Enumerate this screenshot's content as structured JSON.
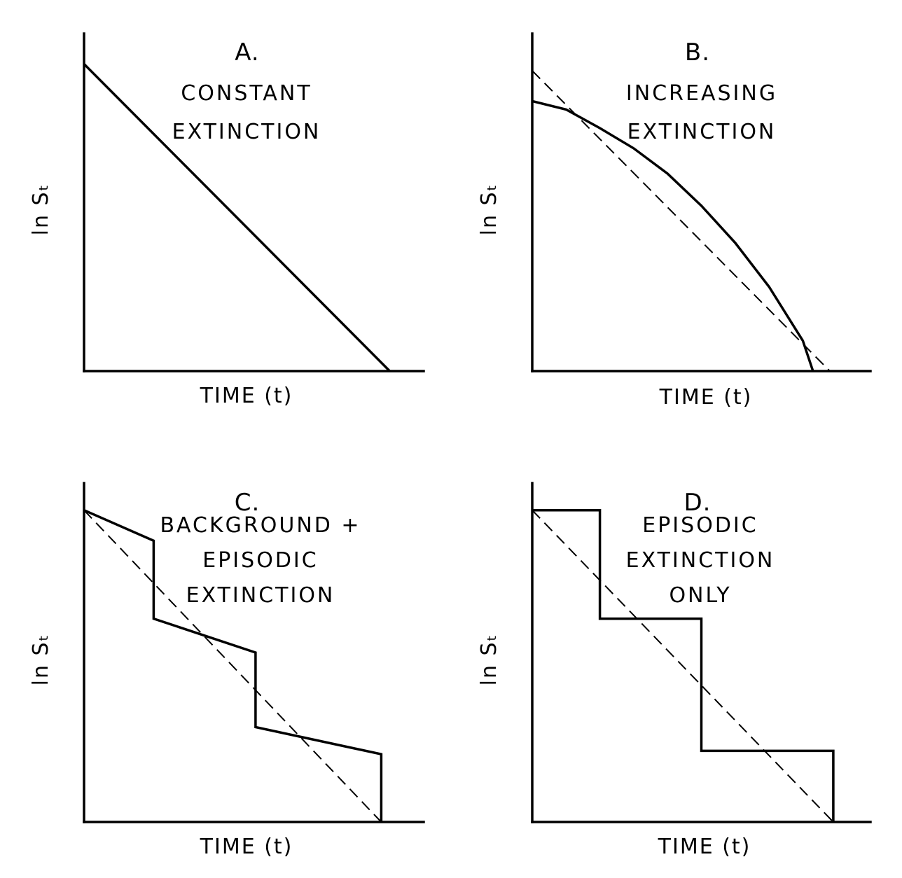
{
  "chart_data": [
    {
      "type": "line",
      "panel": "A.",
      "caption": [
        "CONSTANT",
        "EXTINCTION"
      ],
      "xlabel": "TIME (t)",
      "ylabel": "ln Sₜ",
      "xlim": [
        0,
        1
      ],
      "ylim": [
        0,
        1
      ],
      "grid": false,
      "series": [
        {
          "style": "solid",
          "x": [
            0,
            0.9
          ],
          "y": [
            0.91,
            0
          ]
        }
      ]
    },
    {
      "type": "line",
      "panel": "B.",
      "caption": [
        "INCREASING",
        "EXTINCTION"
      ],
      "xlabel": "TIME (t)",
      "ylabel": "ln Sₜ",
      "xlim": [
        0,
        1
      ],
      "ylim": [
        0,
        1
      ],
      "grid": false,
      "series": [
        {
          "style": "solid",
          "x": [
            0,
            0.1,
            0.2,
            0.3,
            0.4,
            0.5,
            0.6,
            0.7,
            0.8,
            0.83
          ],
          "y": [
            0.8,
            0.775,
            0.72,
            0.66,
            0.585,
            0.49,
            0.38,
            0.25,
            0.09,
            0
          ]
        },
        {
          "style": "dashed",
          "x": [
            0,
            0.88
          ],
          "y": [
            0.89,
            0
          ]
        }
      ]
    },
    {
      "type": "line",
      "panel": "C.",
      "caption": [
        "BACKGROUND +",
        "EPISODIC",
        "EXTINCTION"
      ],
      "xlabel": "TIME (t)",
      "ylabel": "ln Sₜ",
      "xlim": [
        0,
        1
      ],
      "ylim": [
        0,
        1
      ],
      "grid": false,
      "series": [
        {
          "style": "solid",
          "x": [
            0,
            0.205,
            0.205,
            0.505,
            0.505,
            0.875,
            0.875
          ],
          "y": [
            0.92,
            0.83,
            0.6,
            0.5,
            0.28,
            0.2,
            0
          ]
        },
        {
          "style": "dashed",
          "x": [
            0,
            0.875
          ],
          "y": [
            0.92,
            0
          ]
        }
      ]
    },
    {
      "type": "line",
      "panel": "D.",
      "caption": [
        "EPISODIC",
        "EXTINCTION",
        "ONLY"
      ],
      "xlabel": "TIME (t)",
      "ylabel": "ln Sₜ",
      "xlim": [
        0,
        1
      ],
      "ylim": [
        0,
        1
      ],
      "grid": false,
      "series": [
        {
          "style": "solid",
          "x": [
            0,
            0.2,
            0.2,
            0.5,
            0.5,
            0.89,
            0.89
          ],
          "y": [
            0.92,
            0.92,
            0.6,
            0.6,
            0.21,
            0.21,
            0
          ]
        },
        {
          "style": "dashed",
          "x": [
            0,
            0.89
          ],
          "y": [
            0.92,
            0
          ]
        }
      ]
    }
  ]
}
